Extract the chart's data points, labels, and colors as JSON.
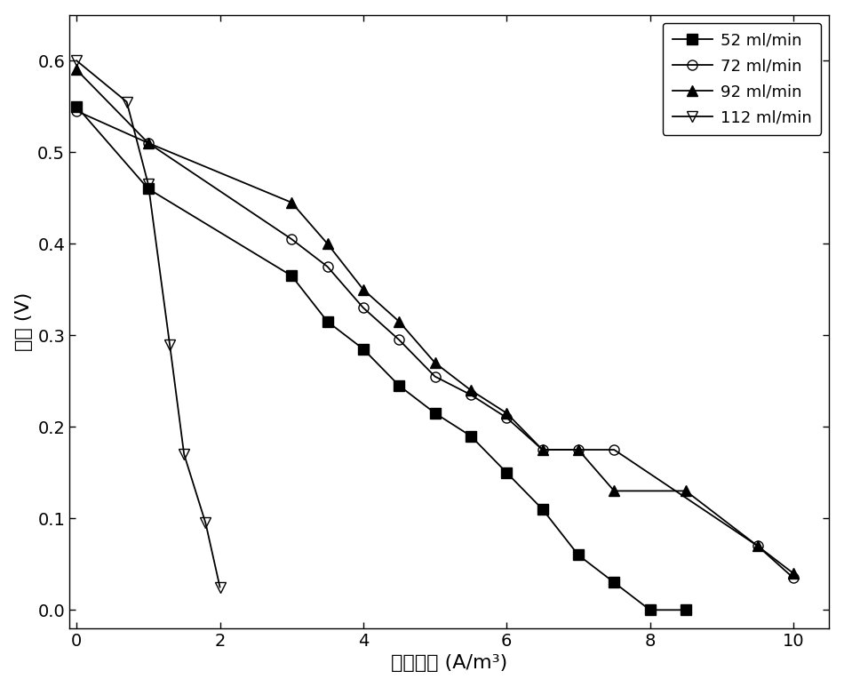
{
  "series": [
    {
      "label": "52 ml/min",
      "x": [
        0,
        1,
        3,
        3.5,
        4,
        4.5,
        5,
        5.5,
        6,
        6.5,
        7,
        7.5,
        8,
        8.5
      ],
      "y": [
        0.55,
        0.46,
        0.365,
        0.315,
        0.285,
        0.245,
        0.215,
        0.19,
        0.15,
        0.11,
        0.06,
        0.03,
        0.0,
        0.0
      ],
      "marker": "s",
      "fillstyle": "full",
      "color": "#000000"
    },
    {
      "label": "72 ml/min",
      "x": [
        0,
        1,
        3,
        3.5,
        4,
        4.5,
        5,
        5.5,
        6,
        6.5,
        7,
        7.5,
        9.5,
        10
      ],
      "y": [
        0.545,
        0.51,
        0.405,
        0.375,
        0.33,
        0.295,
        0.255,
        0.235,
        0.21,
        0.175,
        0.175,
        0.175,
        0.07,
        0.035
      ],
      "marker": "o",
      "fillstyle": "none",
      "color": "#000000"
    },
    {
      "label": "92 ml/min",
      "x": [
        0,
        1,
        3,
        3.5,
        4,
        4.5,
        5,
        5.5,
        6,
        6.5,
        7,
        7.5,
        8.5,
        9.5,
        10
      ],
      "y": [
        0.59,
        0.51,
        0.445,
        0.4,
        0.35,
        0.315,
        0.27,
        0.24,
        0.215,
        0.175,
        0.175,
        0.13,
        0.13,
        0.07,
        0.04
      ],
      "marker": "^",
      "fillstyle": "full",
      "color": "#000000"
    },
    {
      "label": "112 ml/min",
      "x": [
        0,
        0.7,
        1,
        1.3,
        1.5,
        1.8,
        2.0
      ],
      "y": [
        0.6,
        0.555,
        0.465,
        0.29,
        0.17,
        0.095,
        0.025
      ],
      "marker": "v",
      "fillstyle": "none",
      "color": "#000000"
    }
  ],
  "xlabel": "电流密度 (A/m³)",
  "ylabel": "电压 (V)",
  "xlim": [
    -0.1,
    10.5
  ],
  "ylim": [
    -0.02,
    0.65
  ],
  "xticks": [
    0,
    2,
    4,
    6,
    8,
    10
  ],
  "yticks": [
    0.0,
    0.1,
    0.2,
    0.3,
    0.4,
    0.5,
    0.6
  ],
  "legend_loc": "upper right",
  "figsize": [
    9.5,
    7.73
  ],
  "dpi": 100,
  "font_family": "SimHei",
  "tick_labelsize": 14,
  "axis_labelsize": 16,
  "legend_fontsize": 13,
  "markersize": 8,
  "linewidth": 1.3
}
